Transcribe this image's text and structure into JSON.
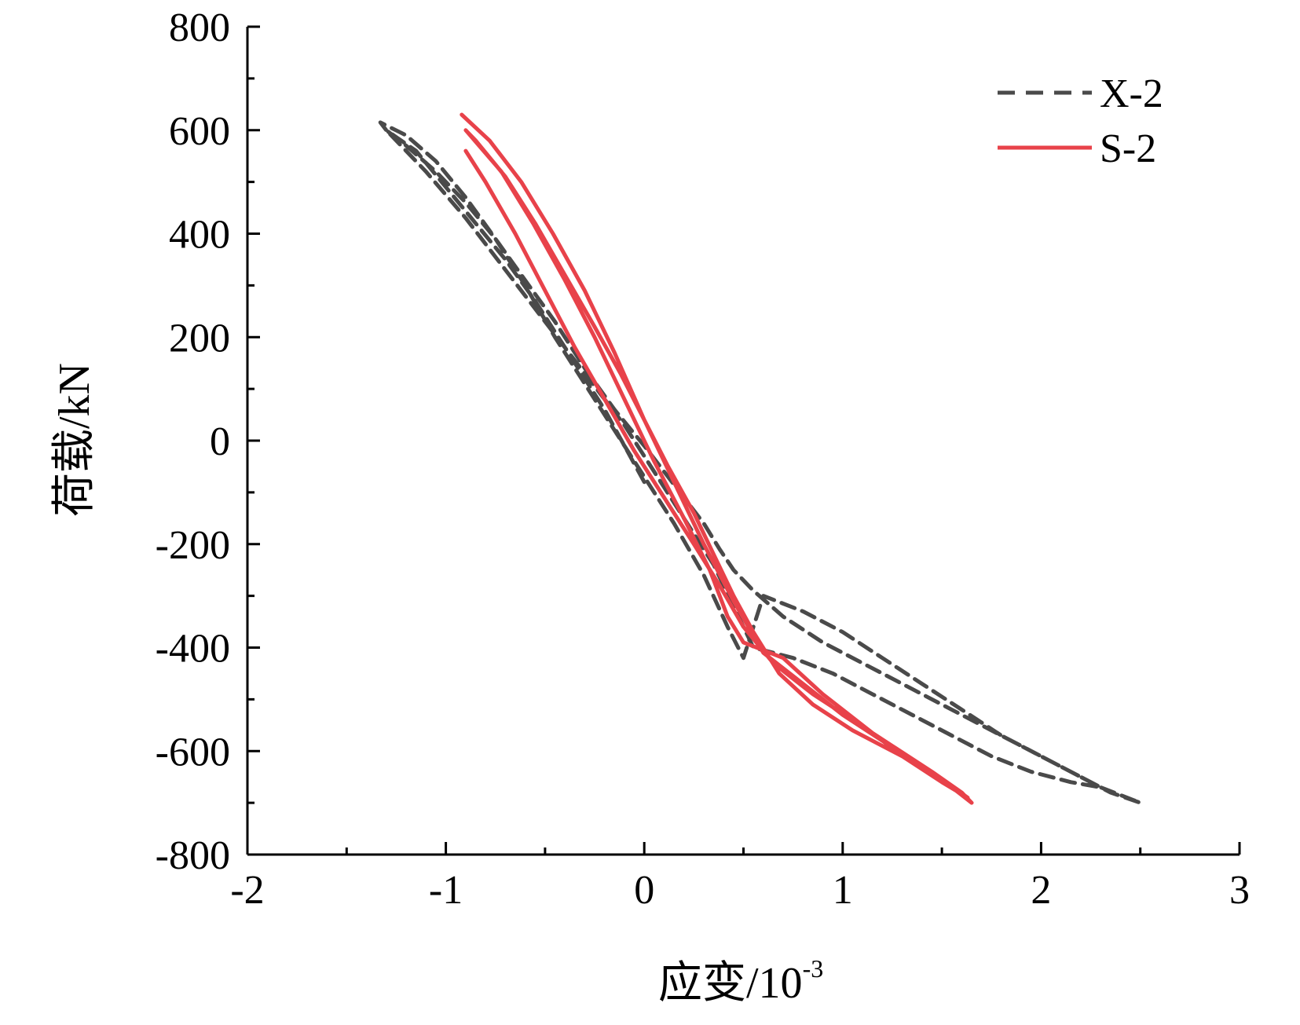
{
  "chart_data": {
    "type": "line",
    "title": "",
    "xlabel": "应变/10",
    "xlabel_sup": "-3",
    "ylabel": "荷载/kN",
    "xlim": [
      -2,
      3
    ],
    "ylim": [
      -800,
      800
    ],
    "x_ticks": [
      -2,
      -1,
      0,
      1,
      2,
      3
    ],
    "x_tick_labels": [
      "-2",
      "-1",
      "0",
      "1",
      "2",
      "3"
    ],
    "y_ticks": [
      -800,
      -600,
      -400,
      -200,
      0,
      200,
      400,
      600,
      800
    ],
    "y_tick_labels": [
      "-800",
      "-600",
      "-400",
      "-200",
      "0",
      "200",
      "400",
      "600",
      "800"
    ],
    "grid": false,
    "legend_position": "top-right",
    "series": [
      {
        "name": "X-2",
        "style": "dashed",
        "color": "#4a4a4a",
        "x": [
          0.0,
          -0.2,
          -0.4,
          -0.55,
          -0.7,
          -0.85,
          -1.0,
          -1.15,
          -1.3,
          -1.33,
          -1.2,
          -1.05,
          -0.9,
          -0.75,
          -0.6,
          -0.45,
          -0.3,
          -0.15,
          0.0,
          0.15,
          0.3,
          0.42,
          0.5,
          0.6,
          0.8,
          1.0,
          1.2,
          1.4,
          1.6,
          1.8,
          2.0,
          2.2,
          2.35,
          2.5,
          2.3,
          2.1,
          1.9,
          1.7,
          1.5,
          1.3,
          1.1,
          0.9,
          0.7,
          0.55,
          0.45,
          0.38,
          0.3,
          0.2,
          0.1,
          0.0,
          -0.15,
          -0.3,
          -0.45,
          -0.6,
          -0.75,
          -0.9,
          -1.05,
          -1.2,
          -1.3,
          -1.1,
          -0.9,
          -0.7,
          -0.5,
          -0.3,
          -0.1,
          0.05,
          0.2,
          0.35,
          0.45,
          0.55,
          0.75,
          0.95,
          1.15,
          1.35,
          1.55,
          1.75,
          1.95,
          2.15,
          2.3
        ],
        "y": [
          -80,
          60,
          180,
          270,
          350,
          420,
          490,
          560,
          600,
          615,
          590,
          540,
          470,
          390,
          300,
          200,
          110,
          20,
          -70,
          -160,
          -260,
          -360,
          -420,
          -300,
          -330,
          -370,
          -420,
          -470,
          -520,
          -570,
          -610,
          -650,
          -680,
          -700,
          -670,
          -630,
          -590,
          -550,
          -510,
          -470,
          -430,
          -390,
          -340,
          -290,
          -250,
          -210,
          -160,
          -110,
          -60,
          -10,
          60,
          140,
          230,
          310,
          390,
          460,
          520,
          570,
          600,
          520,
          430,
          330,
          230,
          130,
          30,
          -60,
          -150,
          -240,
          -320,
          -400,
          -420,
          -450,
          -490,
          -530,
          -570,
          -610,
          -640,
          -660,
          -670
        ]
      },
      {
        "name": "S-2",
        "style": "solid",
        "color": "#e8424a",
        "x": [
          -0.92,
          -0.78,
          -0.62,
          -0.46,
          -0.3,
          -0.15,
          0.0,
          0.15,
          0.3,
          0.45,
          0.6,
          0.8,
          1.0,
          1.2,
          1.4,
          1.55,
          1.65,
          1.6,
          1.45,
          1.25,
          1.05,
          0.85,
          0.68,
          0.55,
          0.45,
          0.35,
          0.25,
          0.12,
          0.0,
          -0.12,
          -0.25,
          -0.4,
          -0.55,
          -0.7,
          -0.85,
          -0.9,
          -0.72,
          -0.56,
          -0.4,
          -0.25,
          -0.1,
          0.05,
          0.2,
          0.33,
          0.42,
          0.5,
          0.7,
          0.9,
          1.1,
          1.3,
          1.5,
          1.63,
          1.45,
          1.25,
          1.05,
          0.85,
          0.65,
          0.5,
          0.38,
          0.25,
          0.1,
          -0.05,
          -0.2,
          -0.35,
          -0.5,
          -0.65,
          -0.8,
          -0.9
        ],
        "y": [
          630,
          580,
          500,
          400,
          290,
          170,
          40,
          -80,
          -200,
          -310,
          -410,
          -470,
          -530,
          -580,
          -630,
          -670,
          -700,
          -680,
          -640,
          -600,
          -560,
          -510,
          -450,
          -370,
          -300,
          -220,
          -140,
          -50,
          40,
          130,
          220,
          320,
          420,
          510,
          580,
          600,
          520,
          420,
          310,
          200,
          80,
          -40,
          -150,
          -250,
          -340,
          -390,
          -420,
          -490,
          -550,
          -610,
          -660,
          -690,
          -640,
          -590,
          -540,
          -490,
          -430,
          -360,
          -280,
          -200,
          -110,
          -20,
          80,
          180,
          290,
          400,
          500,
          560
        ]
      }
    ]
  }
}
